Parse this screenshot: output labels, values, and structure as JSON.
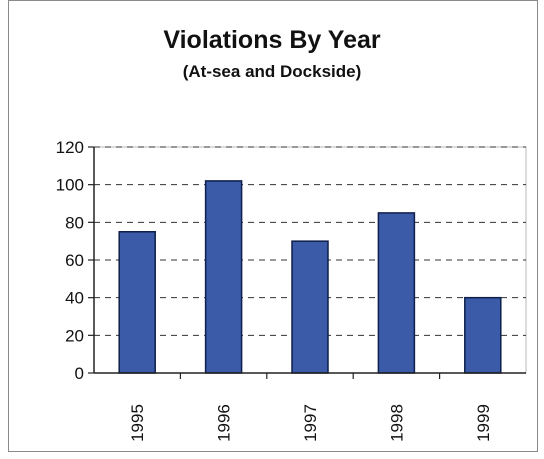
{
  "chart_data": {
    "type": "bar",
    "title": "Violations By Year",
    "subtitle": "(At-sea and Dockside)",
    "categories": [
      "1995",
      "1996",
      "1997",
      "1998",
      "1999"
    ],
    "values": [
      75,
      102,
      70,
      85,
      40
    ],
    "ylim": [
      0,
      120
    ],
    "yticks": [
      "0",
      "20",
      "40",
      "60",
      "80",
      "100",
      "120"
    ],
    "grid": "dashed horizontal",
    "legend": "none",
    "colors": {
      "bar": "#3b5aa8",
      "bar_edge": "#0d1f4a",
      "grid": "#333333"
    }
  }
}
